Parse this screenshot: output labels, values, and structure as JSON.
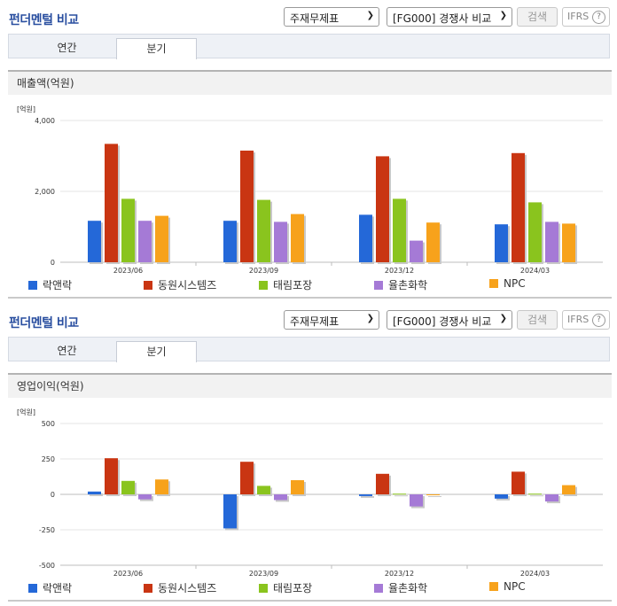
{
  "sections": [
    {
      "header_title": "펀더멘털 비교",
      "select_statement": "주재무제표",
      "select_compare": "[FG000] 경쟁사 비교",
      "search_label": "검색",
      "ifrs_label": "IFRS",
      "ifrs_help": "?",
      "tabs": [
        {
          "label": "연간"
        },
        {
          "label": "분기",
          "active": true
        }
      ],
      "chart_title": "매출액(억원)",
      "unit_label": "[억원]"
    },
    {
      "header_title": "펀더멘털 비교",
      "select_statement": "주재무제표",
      "select_compare": "[FG000] 경쟁사 비교",
      "search_label": "검색",
      "ifrs_label": "IFRS",
      "ifrs_help": "?",
      "tabs": [
        {
          "label": "연간"
        },
        {
          "label": "분기",
          "active": true
        }
      ],
      "chart_title": "영업이익(억원)",
      "unit_label": "[억원]"
    }
  ],
  "colors": {
    "락앤락": "#2468d8",
    "동원시스템즈": "#c93512",
    "태림포장": "#8ac41e",
    "율촌화학": "#a57ad6",
    "NPC": "#f7a21b"
  },
  "chart_data": [
    {
      "type": "bar",
      "title": "매출액(억원)",
      "ylabel": "[억원]",
      "categories": [
        "2023/06",
        "2023/09",
        "2023/12",
        "2024/03"
      ],
      "ylim": [
        0,
        4000
      ],
      "yticks": [
        "0",
        "2,000",
        "4,000"
      ],
      "ytick_values": [
        0,
        2000,
        4000
      ],
      "series": [
        {
          "name": "락앤락",
          "values": [
            1170,
            1170,
            1340,
            1070
          ]
        },
        {
          "name": "동원시스템즈",
          "values": [
            3340,
            3150,
            2990,
            3080
          ]
        },
        {
          "name": "태림포장",
          "values": [
            1790,
            1760,
            1790,
            1690
          ]
        },
        {
          "name": "율촌화학",
          "values": [
            1170,
            1140,
            610,
            1140
          ]
        },
        {
          "name": "NPC",
          "values": [
            1310,
            1360,
            1120,
            1090
          ]
        }
      ],
      "legend": "bottom"
    },
    {
      "type": "bar",
      "title": "영업이익(억원)",
      "ylabel": "[억원]",
      "categories": [
        "2023/06",
        "2023/09",
        "2023/12",
        "2024/03"
      ],
      "ylim": [
        -500,
        500
      ],
      "yticks": [
        "-500",
        "-250",
        "0",
        "250",
        "500"
      ],
      "ytick_values": [
        -500,
        -250,
        0,
        250,
        500
      ],
      "series": [
        {
          "name": "락앤락",
          "values": [
            20,
            -240,
            -12,
            -30
          ]
        },
        {
          "name": "동원시스템즈",
          "values": [
            255,
            230,
            145,
            160
          ]
        },
        {
          "name": "태림포장",
          "values": [
            95,
            60,
            5,
            5
          ]
        },
        {
          "name": "율촌화학",
          "values": [
            -35,
            -40,
            -85,
            -50
          ]
        },
        {
          "name": "NPC",
          "values": [
            105,
            100,
            0,
            65
          ]
        }
      ],
      "legend": "bottom"
    }
  ]
}
